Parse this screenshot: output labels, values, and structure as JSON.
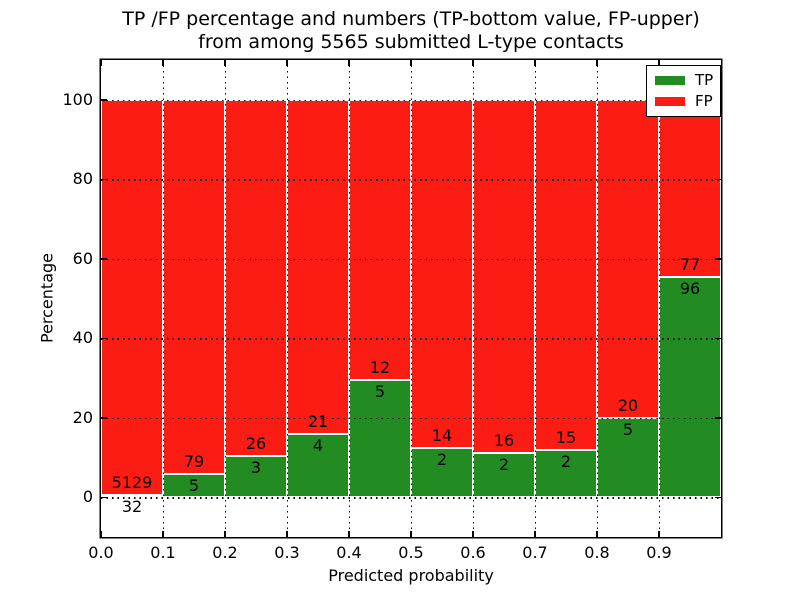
{
  "chart_data": {
    "type": "bar",
    "stacked": true,
    "normalized_to_percent": true,
    "title_line1": "TP /FP percentage and numbers (TP-bottom value, FP-upper)",
    "title_line2": "from among 5565 submitted L-type contacts",
    "title": "TP /FP percentage and numbers (TP-bottom value, FP-upper)\nfrom among 5565 submitted L-type contacts",
    "xlabel": "Predicted probability",
    "ylabel": "Percentage",
    "categories": [
      "0.0-0.1",
      "0.1-0.2",
      "0.2-0.3",
      "0.3-0.4",
      "0.4-0.5",
      "0.5-0.6",
      "0.6-0.7",
      "0.7-0.8",
      "0.8-0.9",
      "0.9-1.0"
    ],
    "bin_width": 0.1,
    "series": [
      {
        "name": "TP",
        "color": "#228b22",
        "values": [
          32,
          5,
          3,
          4,
          5,
          2,
          2,
          2,
          5,
          96
        ]
      },
      {
        "name": "FP",
        "color": "#fb1c13",
        "values": [
          5129,
          79,
          26,
          21,
          12,
          14,
          16,
          15,
          20,
          77
        ]
      }
    ],
    "bar_height_rule": "green TP segment height = tp/(tp+fp)*100 percent; red FP fills to 100",
    "x_ticks": [
      "0.0",
      "0.1",
      "0.2",
      "0.3",
      "0.4",
      "0.5",
      "0.6",
      "0.7",
      "0.8",
      "0.9"
    ],
    "y_ticks": [
      "0",
      "20",
      "40",
      "60",
      "80",
      "100"
    ],
    "xlim": [
      0.0,
      1.0
    ],
    "ylim": [
      -10,
      110
    ],
    "grid": true,
    "legend_position": "upper right"
  }
}
